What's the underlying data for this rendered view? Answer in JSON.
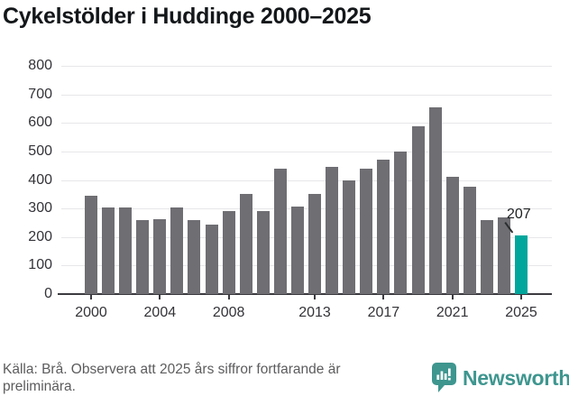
{
  "chart_data": {
    "type": "bar",
    "title": "Cykelstölder i Huddinge 2000–2025",
    "x": [
      2000,
      2001,
      2002,
      2003,
      2004,
      2005,
      2006,
      2007,
      2008,
      2009,
      2010,
      2011,
      2012,
      2013,
      2014,
      2015,
      2016,
      2017,
      2018,
      2019,
      2020,
      2021,
      2022,
      2023,
      2024,
      2025
    ],
    "values": [
      345,
      303,
      303,
      258,
      261,
      305,
      260,
      245,
      290,
      352,
      291,
      438,
      306,
      350,
      447,
      398,
      441,
      470,
      500,
      589,
      655,
      410,
      376,
      259,
      270,
      207
    ],
    "x_tick_labels": [
      "2000",
      "2004",
      "2008",
      "2013",
      "2017",
      "2021",
      "2025"
    ],
    "y_ticks": [
      0,
      100,
      200,
      300,
      400,
      500,
      600,
      700,
      800
    ],
    "ylim": [
      0,
      800
    ],
    "grid": "horizontal",
    "legend": "none",
    "highlight_year": 2025,
    "annotation": {
      "text": "207",
      "year": 2025
    },
    "bar_color": "#6e6e73",
    "highlight_color": "#00a69c"
  },
  "caption": {
    "line1": "Källa: Brå. Observera att 2025 års siffror fortfarande är",
    "line2": "preliminära."
  },
  "brand": {
    "name": "Newsworthy",
    "color": "#3e968f"
  }
}
